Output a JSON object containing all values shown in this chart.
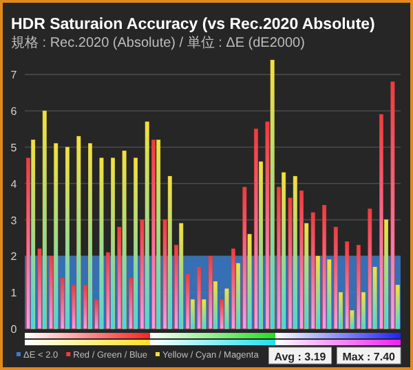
{
  "chart_data": {
    "type": "bar",
    "title": "HDR Saturaion Accuracy (vs Rec.2020 Absolute)",
    "subtitle": "規格 : Rec.2020 (Absolute) / 単位 : ΔE (dE2000)",
    "categories": [
      null,
      null,
      null,
      null,
      null,
      null,
      null,
      null,
      null,
      null,
      null,
      null,
      null,
      null,
      null,
      null,
      null,
      null,
      null,
      null,
      null,
      null,
      null,
      null,
      null,
      null,
      null,
      null,
      null,
      null,
      null,
      null,
      null
    ],
    "series": [
      {
        "name": "Red / Green / Blue",
        "color": "#f03c3c",
        "values": [
          4.7,
          2.2,
          2.0,
          1.4,
          1.2,
          1.2,
          0.8,
          2.1,
          2.8,
          1.4,
          3.0,
          5.2,
          3.0,
          2.3,
          1.5,
          1.7,
          2.0,
          0.8,
          2.2,
          3.9,
          5.5,
          5.7,
          3.9,
          3.6,
          3.8,
          3.2,
          3.4,
          2.8,
          2.4,
          2.3,
          3.3,
          5.9,
          6.8
        ]
      },
      {
        "name": "Yellow / Cyan / Magenta",
        "color": "#f5e03a",
        "values": [
          5.2,
          6.0,
          5.1,
          5.0,
          5.3,
          5.1,
          4.7,
          4.7,
          4.9,
          4.7,
          5.7,
          5.2,
          4.2,
          2.9,
          0.8,
          0.8,
          1.3,
          1.1,
          1.8,
          2.6,
          4.6,
          7.4,
          4.3,
          4.2,
          2.9,
          2.0,
          1.9,
          1.0,
          0.5,
          1.0,
          1.7,
          3.0,
          1.2
        ]
      }
    ],
    "ylim": [
      0,
      7.5
    ],
    "yticks": [
      0,
      1,
      2,
      3,
      4,
      5,
      6,
      7
    ],
    "grid": "y",
    "legend": "bottom",
    "bands": [
      {
        "axis": "y",
        "from": 0,
        "to": 2,
        "label": "ΔE < 2.0",
        "color": "#3a7ccc"
      }
    ],
    "annotations": [
      "Avg : 3.19",
      "Max : 7.40"
    ]
  }
}
